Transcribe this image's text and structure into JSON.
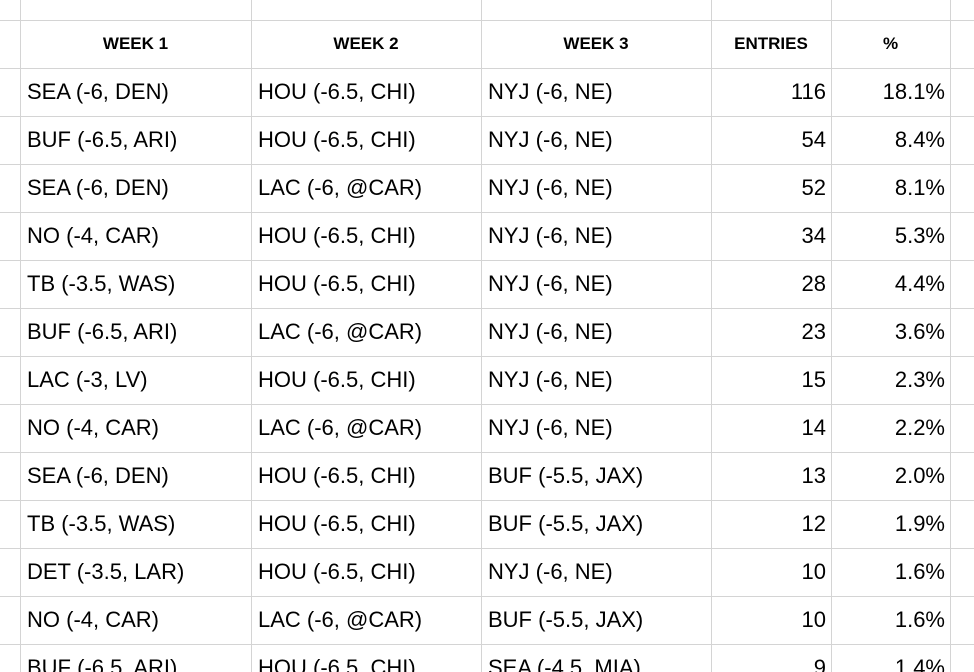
{
  "table": {
    "headers": [
      "WEEK 1",
      "WEEK 2",
      "WEEK 3",
      "ENTRIES",
      "%"
    ],
    "rows": [
      [
        "SEA (-6, DEN)",
        "HOU (-6.5, CHI)",
        "NYJ (-6, NE)",
        116,
        "18.1%"
      ],
      [
        "BUF (-6.5, ARI)",
        "HOU (-6.5, CHI)",
        "NYJ (-6, NE)",
        54,
        "8.4%"
      ],
      [
        "SEA (-6, DEN)",
        "LAC (-6, @CAR)",
        "NYJ (-6, NE)",
        52,
        "8.1%"
      ],
      [
        "NO (-4, CAR)",
        "HOU (-6.5, CHI)",
        "NYJ (-6, NE)",
        34,
        "5.3%"
      ],
      [
        "TB (-3.5, WAS)",
        "HOU (-6.5, CHI)",
        "NYJ (-6, NE)",
        28,
        "4.4%"
      ],
      [
        "BUF (-6.5, ARI)",
        "LAC (-6, @CAR)",
        "NYJ (-6, NE)",
        23,
        "3.6%"
      ],
      [
        "LAC (-3, LV)",
        "HOU (-6.5, CHI)",
        "NYJ (-6, NE)",
        15,
        "2.3%"
      ],
      [
        "NO (-4, CAR)",
        "LAC (-6, @CAR)",
        "NYJ (-6, NE)",
        14,
        "2.2%"
      ],
      [
        "SEA (-6, DEN)",
        "HOU (-6.5, CHI)",
        "BUF (-5.5, JAX)",
        13,
        "2.0%"
      ],
      [
        "TB (-3.5, WAS)",
        "HOU (-6.5, CHI)",
        "BUF (-5.5, JAX)",
        12,
        "1.9%"
      ],
      [
        "DET (-3.5, LAR)",
        "HOU (-6.5, CHI)",
        "NYJ (-6, NE)",
        10,
        "1.6%"
      ],
      [
        "NO (-4, CAR)",
        "LAC (-6, @CAR)",
        "BUF (-5.5, JAX)",
        10,
        "1.6%"
      ],
      [
        "BUF (-6.5, ARI)",
        "HOU (-6.5, CHI)",
        "SEA (-4.5, MIA)",
        9,
        "1.4%"
      ]
    ]
  }
}
